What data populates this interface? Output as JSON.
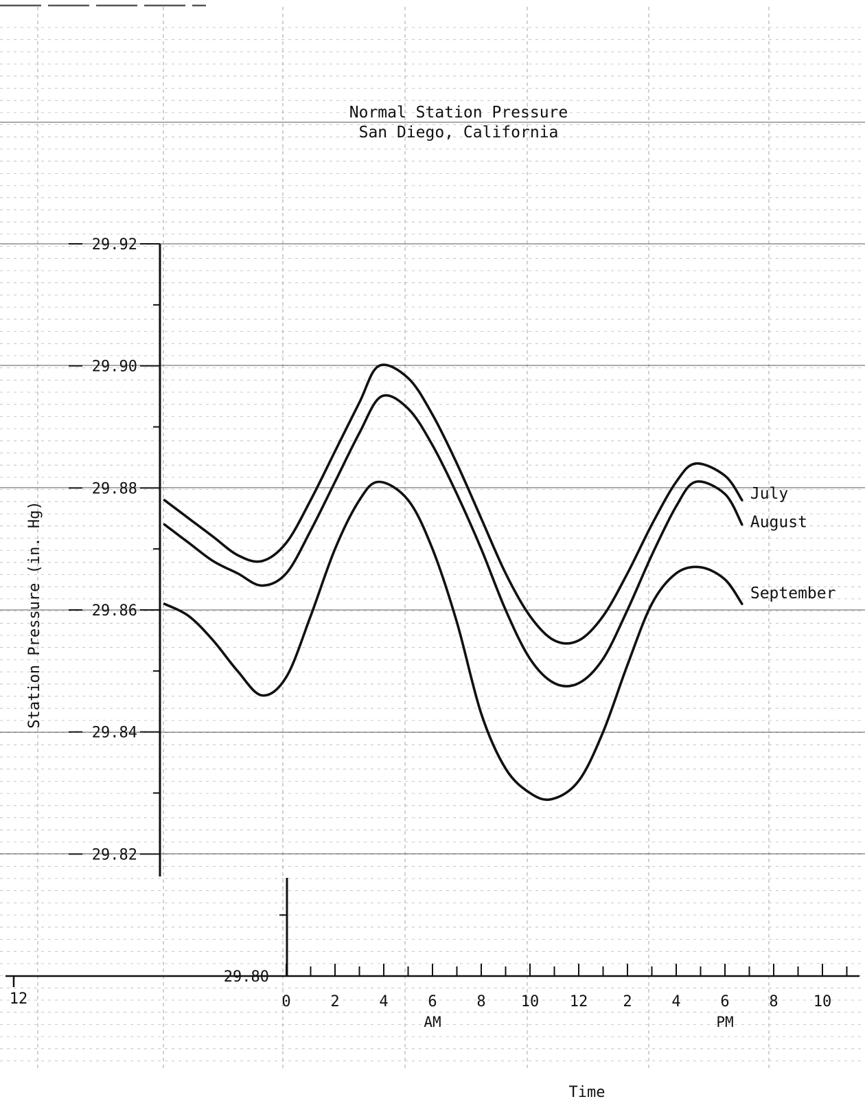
{
  "chart_data": {
    "type": "line",
    "title": "Normal Station Pressure",
    "subtitle": "San Diego, California",
    "xlabel": "Time",
    "ylabel": "Station Pressure (in. Hg)",
    "x_tick_labels": [
      "0",
      "2",
      "4",
      "6",
      "8",
      "10",
      "12",
      "2",
      "4",
      "6",
      "8",
      "10"
    ],
    "x_tick_hours": [
      0,
      2,
      4,
      6,
      8,
      10,
      12,
      14,
      16,
      18,
      20,
      22
    ],
    "x_left_label": "12",
    "x_period_labels": [
      "AM",
      "PM"
    ],
    "y_tick_labels": [
      "29.80",
      "29.82",
      "29.84",
      "29.86",
      "29.88",
      "29.90",
      "29.92"
    ],
    "ylim": [
      29.8,
      29.92
    ],
    "series": [
      {
        "name": "July",
        "x": [
          -5,
          -4,
          -3,
          -2,
          -1,
          0,
          1,
          2,
          3,
          3.8,
          5,
          6,
          7,
          8,
          9,
          10,
          11,
          12,
          13,
          14,
          15,
          16,
          16.8,
          18,
          18.7
        ],
        "y": [
          29.878,
          29.875,
          29.872,
          29.869,
          29.868,
          29.871,
          29.878,
          29.886,
          29.894,
          29.9,
          29.898,
          29.892,
          29.884,
          29.875,
          29.866,
          29.859,
          29.855,
          29.855,
          29.859,
          29.866,
          29.874,
          29.881,
          29.884,
          29.882,
          29.878
        ]
      },
      {
        "name": "August",
        "x": [
          -5,
          -4,
          -3,
          -2,
          -1,
          0,
          1,
          2,
          3,
          3.9,
          5,
          6,
          7,
          8,
          9,
          10,
          11,
          12,
          13,
          14,
          15,
          16,
          16.8,
          18,
          18.7
        ],
        "y": [
          29.874,
          29.871,
          29.868,
          29.866,
          29.864,
          29.866,
          29.873,
          29.881,
          29.889,
          29.895,
          29.893,
          29.887,
          29.879,
          29.87,
          29.86,
          29.852,
          29.848,
          29.848,
          29.852,
          29.86,
          29.869,
          29.877,
          29.881,
          29.879,
          29.874
        ]
      },
      {
        "name": "September",
        "x": [
          -5,
          -4,
          -3,
          -2,
          -1,
          0,
          1,
          2,
          3,
          3.8,
          5,
          6,
          7,
          8,
          9,
          10,
          10.9,
          12,
          13,
          14,
          15,
          16,
          17,
          18,
          18.7
        ],
        "y": [
          29.861,
          29.859,
          29.855,
          29.85,
          29.846,
          29.849,
          29.859,
          29.87,
          29.878,
          29.881,
          29.878,
          29.87,
          29.858,
          29.843,
          29.834,
          29.83,
          29.829,
          29.832,
          29.84,
          29.851,
          29.861,
          29.866,
          29.867,
          29.865,
          29.861
        ]
      }
    ]
  }
}
